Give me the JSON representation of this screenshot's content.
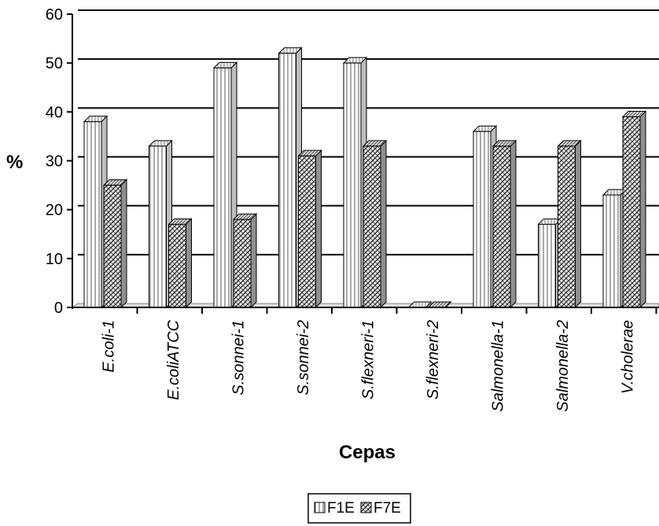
{
  "chart_data": {
    "type": "bar",
    "xlabel": "Cepas",
    "ylabel": "%",
    "ylim": [
      0,
      60
    ],
    "yticks": [
      0,
      10,
      20,
      30,
      40,
      50,
      60
    ],
    "ytick_labels": [
      "0",
      "10",
      "20",
      "30",
      "40",
      "50",
      "60"
    ],
    "grid": true,
    "legend_position": "bottom",
    "categories": [
      "E.coli-1",
      "E.coliATCC",
      "S.sonnei-1",
      "S.sonnei-2",
      "S.flexneri-1",
      "S.flexneri-2",
      "Salmonella-1",
      "Salmonella-2",
      "V.cholerae"
    ],
    "series": [
      {
        "name": "F1E",
        "pattern": "vertical-stripes",
        "values": [
          38,
          33,
          49,
          52,
          50,
          0,
          36,
          17,
          23
        ]
      },
      {
        "name": "F7E",
        "pattern": "crosshatch",
        "values": [
          25,
          17,
          18,
          31,
          33,
          0,
          33,
          33,
          39
        ]
      }
    ]
  }
}
